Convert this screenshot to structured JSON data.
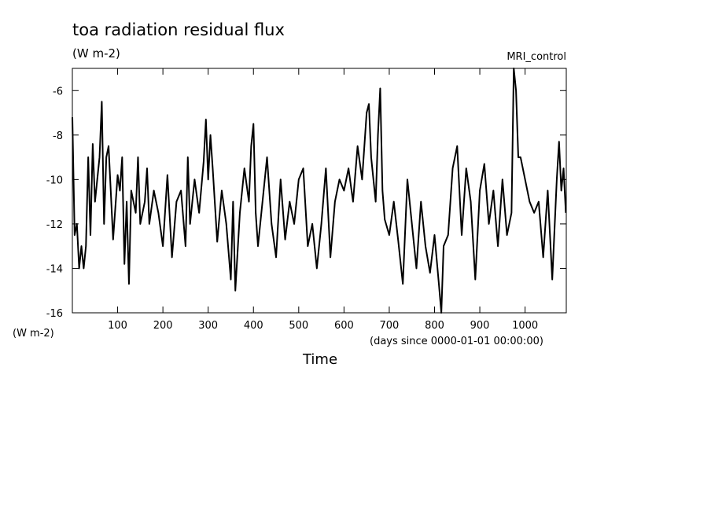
{
  "chart_data": {
    "type": "line",
    "title": "toa radiation residual flux",
    "subtitle": "(W m-2)",
    "annotation": "MRI_control",
    "y_units": "(W m-2)",
    "x_units": "(days since 0000-01-01 00:00:00)",
    "x_label": "Time",
    "color": "#000000",
    "xlim": [
      0,
      1091
    ],
    "ylim": [
      -16,
      -5
    ],
    "xticks": [
      100,
      200,
      300,
      400,
      500,
      600,
      700,
      800,
      900,
      1000
    ],
    "yticks": [
      -16,
      -14,
      -12,
      -10,
      -8,
      -6
    ],
    "x": [
      0,
      5,
      10,
      15,
      20,
      25,
      30,
      35,
      40,
      45,
      50,
      55,
      60,
      65,
      70,
      75,
      80,
      90,
      100,
      105,
      110,
      115,
      120,
      125,
      130,
      140,
      145,
      150,
      160,
      165,
      170,
      180,
      190,
      200,
      210,
      220,
      230,
      240,
      250,
      255,
      260,
      270,
      280,
      290,
      295,
      300,
      305,
      310,
      320,
      330,
      340,
      350,
      355,
      360,
      370,
      380,
      390,
      395,
      400,
      405,
      410,
      420,
      430,
      440,
      450,
      460,
      470,
      480,
      490,
      500,
      510,
      520,
      530,
      540,
      550,
      560,
      570,
      580,
      590,
      600,
      610,
      620,
      630,
      640,
      650,
      655,
      660,
      670,
      675,
      680,
      685,
      690,
      700,
      710,
      720,
      730,
      740,
      750,
      760,
      770,
      780,
      790,
      800,
      810,
      815,
      820,
      830,
      840,
      850,
      860,
      870,
      880,
      890,
      900,
      910,
      920,
      930,
      940,
      950,
      960,
      970,
      975,
      980,
      985,
      990,
      1000,
      1010,
      1020,
      1030,
      1040,
      1050,
      1060,
      1070,
      1075,
      1080,
      1085,
      1090
    ],
    "values": [
      -7.2,
      -12.5,
      -12,
      -14,
      -13,
      -14,
      -13,
      -9,
      -12.5,
      -8.4,
      -11,
      -10,
      -9,
      -6.5,
      -12,
      -9,
      -8.5,
      -12.7,
      -9.8,
      -10.5,
      -9,
      -13.8,
      -11,
      -14.7,
      -10.5,
      -11.5,
      -9,
      -12,
      -11,
      -9.5,
      -12,
      -10.5,
      -11.5,
      -13,
      -9.8,
      -13.5,
      -11,
      -10.5,
      -13,
      -9,
      -12,
      -10,
      -11.5,
      -9.2,
      -7.3,
      -10,
      -8,
      -9.5,
      -12.8,
      -10.5,
      -12,
      -14.5,
      -11,
      -15,
      -11.5,
      -9.5,
      -11,
      -8.5,
      -7.5,
      -11.5,
      -13,
      -11,
      -9,
      -12,
      -13.5,
      -10,
      -12.7,
      -11,
      -12,
      -10,
      -9.5,
      -13,
      -12,
      -14,
      -12,
      -9.5,
      -13.5,
      -11,
      -10,
      -10.5,
      -9.5,
      -11,
      -8.5,
      -10,
      -7,
      -6.6,
      -9,
      -11,
      -8,
      -5.9,
      -10.5,
      -11.8,
      -12.5,
      -11,
      -12.8,
      -14.7,
      -10,
      -12,
      -14,
      -11,
      -13,
      -14.2,
      -12.5,
      -14.8,
      -16,
      -13,
      -12.5,
      -9.5,
      -8.5,
      -12.5,
      -9.5,
      -11,
      -14.5,
      -10.5,
      -9.3,
      -12,
      -10.5,
      -13,
      -10,
      -12.5,
      -11.5,
      -5,
      -6,
      -9,
      -9,
      -10,
      -11,
      -11.5,
      -11,
      -13.5,
      -10.5,
      -14.5,
      -10,
      -8.3,
      -10.5,
      -9.5,
      -11.5
    ]
  }
}
